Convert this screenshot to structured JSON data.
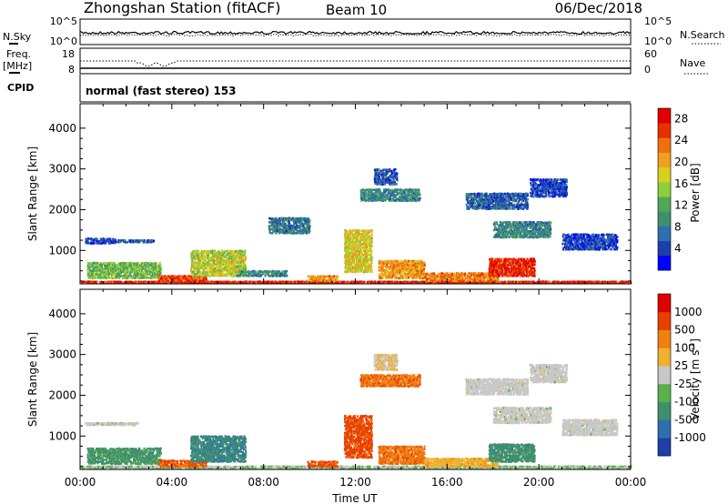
{
  "header": {
    "station": "Zhongshan Station (fitACF)",
    "beam": "Beam 10",
    "date": "06/Dec/2018"
  },
  "colors": {
    "axis": "#000000",
    "background": "#ffffff"
  },
  "chart_data": [
    {
      "type": "line",
      "panel": "nsky-nsearch",
      "labels": {
        "left_title": "N.Sky",
        "right_title": "N.Search",
        "left_ticks": [
          "10^5",
          "10^0"
        ],
        "right_ticks": [
          "10^5",
          "10^0"
        ]
      }
    },
    {
      "type": "line",
      "panel": "freq-nave",
      "labels": {
        "left_title": "Freq.",
        "left_unit": "[MHz]",
        "right_title": "Nave",
        "left_ticks": [
          "18",
          "8"
        ],
        "right_ticks": [
          "60",
          "0"
        ]
      }
    },
    {
      "type": "table",
      "panel": "cpid",
      "labels": {
        "title": "CPID",
        "value": "normal (fast stereo) 153"
      }
    },
    {
      "type": "heatmap",
      "panel": "power",
      "ylabel": "Slant Range [km]",
      "xlabel": "",
      "ylim": [
        180,
        4600
      ],
      "xlim": [
        0,
        24
      ],
      "yticks": [
        "1000",
        "2000",
        "3000",
        "4000"
      ],
      "colorbar": {
        "label": "Power [dB]",
        "ticks": [
          "4",
          "8",
          "12",
          "16",
          "20",
          "24",
          "28"
        ],
        "colors": [
          "#0000ff",
          "#1c3fa8",
          "#2f6fb0",
          "#3f8f6f",
          "#4fa85a",
          "#8ecf3a",
          "#d8d020",
          "#f0a020",
          "#f07010",
          "#e83000",
          "#e00000"
        ]
      },
      "echo_regions": [
        {
          "t0": 0.0,
          "t1": 24.0,
          "r0": 180,
          "r1": 230,
          "level": 0.9
        },
        {
          "t0": 0.2,
          "t1": 1.5,
          "r0": 1150,
          "r1": 1300,
          "level": 0.15
        },
        {
          "t0": 1.5,
          "t1": 3.2,
          "r0": 1180,
          "r1": 1250,
          "level": 0.2
        },
        {
          "t0": 0.3,
          "t1": 3.5,
          "r0": 300,
          "r1": 700,
          "level": 0.45
        },
        {
          "t0": 3.4,
          "t1": 5.5,
          "r0": 230,
          "r1": 380,
          "level": 0.85
        },
        {
          "t0": 4.8,
          "t1": 7.2,
          "r0": 350,
          "r1": 1000,
          "level": 0.55
        },
        {
          "t0": 6.8,
          "t1": 9.0,
          "r0": 350,
          "r1": 500,
          "level": 0.3
        },
        {
          "t0": 9.9,
          "t1": 11.2,
          "r0": 230,
          "r1": 380,
          "level": 0.7
        },
        {
          "t0": 11.5,
          "t1": 12.7,
          "r0": 450,
          "r1": 1500,
          "level": 0.6
        },
        {
          "t0": 12.2,
          "t1": 14.8,
          "r0": 2200,
          "r1": 2500,
          "level": 0.3
        },
        {
          "t0": 12.8,
          "t1": 13.8,
          "r0": 2600,
          "r1": 3000,
          "level": 0.2
        },
        {
          "t0": 13.0,
          "t1": 15.0,
          "r0": 300,
          "r1": 750,
          "level": 0.7
        },
        {
          "t0": 15.0,
          "t1": 18.2,
          "r0": 230,
          "r1": 450,
          "level": 0.75
        },
        {
          "t0": 17.8,
          "t1": 19.8,
          "r0": 350,
          "r1": 800,
          "level": 0.9
        },
        {
          "t0": 18.0,
          "t1": 20.5,
          "r0": 1300,
          "r1": 1700,
          "level": 0.3
        },
        {
          "t0": 16.8,
          "t1": 19.5,
          "r0": 2000,
          "r1": 2400,
          "level": 0.2
        },
        {
          "t0": 19.6,
          "t1": 21.2,
          "r0": 2300,
          "r1": 2750,
          "level": 0.15
        },
        {
          "t0": 21.0,
          "t1": 23.4,
          "r0": 1000,
          "r1": 1400,
          "level": 0.15
        },
        {
          "t0": 8.2,
          "t1": 10.0,
          "r0": 1400,
          "r1": 1800,
          "level": 0.25
        }
      ]
    },
    {
      "type": "heatmap",
      "panel": "velocity",
      "ylabel": "Slant Range [km]",
      "xlabel": "Time UT",
      "ylim": [
        180,
        4600
      ],
      "xlim": [
        0,
        24
      ],
      "xticks": [
        "00:00",
        "04:00",
        "08:00",
        "12:00",
        "16:00",
        "20:00",
        "00:00"
      ],
      "yticks": [
        "1000",
        "2000",
        "3000",
        "4000"
      ],
      "colorbar": {
        "label": "Velocity [m s",
        "label_sup": "-1",
        "label_end": "]",
        "ticks": [
          "1000",
          "500",
          "100",
          "25",
          "-25",
          "-100",
          "-500",
          "-1000"
        ],
        "colors": [
          "#1c3fa8",
          "#2f6fb0",
          "#3f8f6f",
          "#5ab04a",
          "#c8c8c8",
          "#f0b030",
          "#f08010",
          "#e84000",
          "#e00000"
        ]
      },
      "echo_regions": [
        {
          "t0": 0.0,
          "t1": 24.0,
          "r0": 180,
          "r1": 260,
          "level": 0.45
        },
        {
          "t0": 0.3,
          "t1": 3.5,
          "r0": 300,
          "r1": 700,
          "level": 0.3
        },
        {
          "t0": 3.4,
          "t1": 5.5,
          "r0": 230,
          "r1": 400,
          "level": 0.78
        },
        {
          "t0": 4.8,
          "t1": 7.2,
          "r0": 350,
          "r1": 1000,
          "level": 0.25
        },
        {
          "t0": 9.9,
          "t1": 11.2,
          "r0": 230,
          "r1": 380,
          "level": 0.8
        },
        {
          "t0": 11.5,
          "t1": 12.7,
          "r0": 450,
          "r1": 1500,
          "level": 0.82
        },
        {
          "t0": 12.2,
          "t1": 14.8,
          "r0": 2200,
          "r1": 2500,
          "level": 0.75
        },
        {
          "t0": 12.8,
          "t1": 13.8,
          "r0": 2600,
          "r1": 3000,
          "level": 0.55
        },
        {
          "t0": 13.0,
          "t1": 15.0,
          "r0": 300,
          "r1": 750,
          "level": 0.75
        },
        {
          "t0": 15.0,
          "t1": 18.2,
          "r0": 230,
          "r1": 450,
          "level": 0.62
        },
        {
          "t0": 17.8,
          "t1": 19.8,
          "r0": 350,
          "r1": 800,
          "level": 0.28
        },
        {
          "t0": 18.0,
          "t1": 20.5,
          "r0": 1300,
          "r1": 1700,
          "level": 0.5
        },
        {
          "t0": 16.8,
          "t1": 19.5,
          "r0": 2000,
          "r1": 2400,
          "level": 0.5
        },
        {
          "t0": 19.6,
          "t1": 21.2,
          "r0": 2300,
          "r1": 2750,
          "level": 0.5
        },
        {
          "t0": 21.0,
          "t1": 23.4,
          "r0": 1000,
          "r1": 1400,
          "level": 0.5
        },
        {
          "t0": 0.2,
          "t1": 2.5,
          "r0": 1250,
          "r1": 1320,
          "level": 0.5
        }
      ]
    }
  ]
}
